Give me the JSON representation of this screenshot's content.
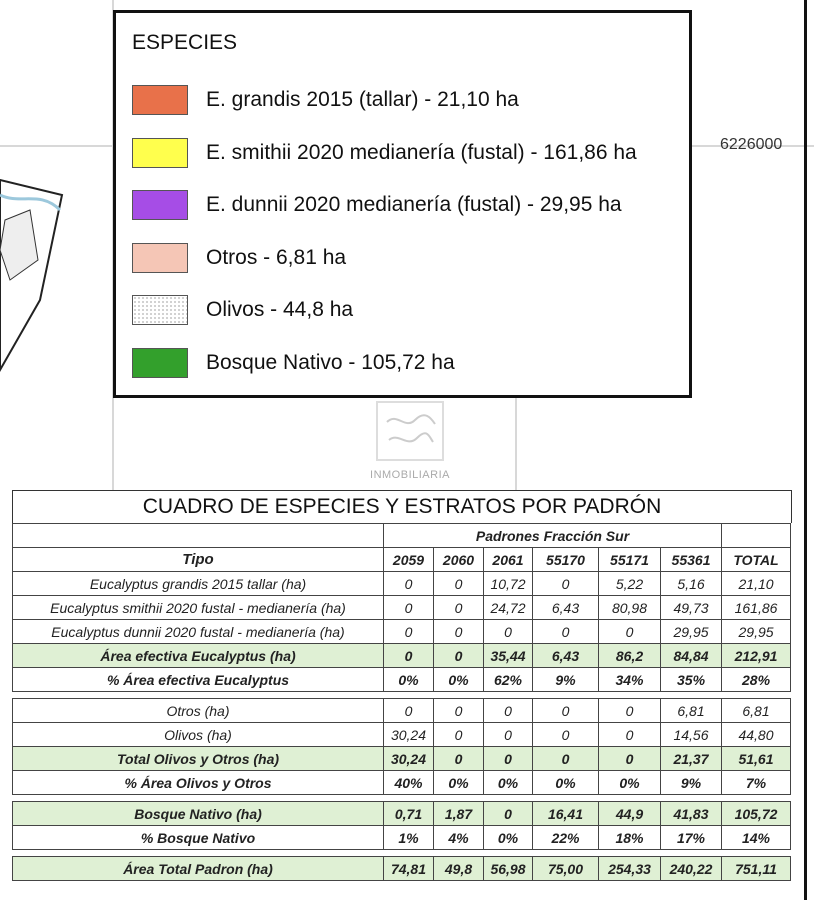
{
  "legend": {
    "title": "ESPECIES",
    "items": [
      {
        "label": "E. grandis 2015 (tallar) - 21,10 ha",
        "color": "#e8714a"
      },
      {
        "label": "E. smithii 2020 medianería (fustal) - 161,86 ha",
        "color": "#ffff4d"
      },
      {
        "label": "E. dunnii 2020 medianería (fustal) - 29,95 ha",
        "color": "#a64de6"
      },
      {
        "label": "Otros - 6,81 ha",
        "color": "#f5c6b6"
      },
      {
        "label": "Olivos - 44,8 ha",
        "color": "dotted"
      },
      {
        "label": "Bosque Nativo - 105,72 ha",
        "color": "#33a02c"
      }
    ]
  },
  "map": {
    "coordinate_label": "6226000",
    "watermark": "INMOBILIARIA"
  },
  "table": {
    "title": "CUADRO DE ESPECIES Y ESTRATOS POR PADRÓN",
    "group_header": "Padrones Fracción Sur",
    "columns": [
      "Tipo",
      "2059",
      "2060",
      "2061",
      "55170",
      "55171",
      "55361",
      "TOTAL"
    ],
    "highlight_color": "#dff0d4",
    "groups": [
      [
        {
          "style": "",
          "cells": [
            "Eucalyptus grandis 2015 tallar (ha)",
            "0",
            "0",
            "10,72",
            "0",
            "5,22",
            "5,16",
            "21,10"
          ]
        },
        {
          "style": "",
          "cells": [
            "Eucalyptus smithii 2020 fustal - medianería (ha)",
            "0",
            "0",
            "24,72",
            "6,43",
            "80,98",
            "49,73",
            "161,86"
          ]
        },
        {
          "style": "",
          "cells": [
            "Eucalyptus  dunnii 2020 fustal - medianería (ha)",
            "0",
            "0",
            "0",
            "0",
            "0",
            "29,95",
            "29,95"
          ]
        },
        {
          "style": "g b",
          "cells": [
            "Área efectiva Eucalyptus (ha)",
            "0",
            "0",
            "35,44",
            "6,43",
            "86,2",
            "84,84",
            "212,91"
          ]
        },
        {
          "style": "b",
          "cells": [
            "% Área efectiva Eucalyptus",
            "0%",
            "0%",
            "62%",
            "9%",
            "34%",
            "35%",
            "28%"
          ]
        }
      ],
      [
        {
          "style": "",
          "cells": [
            "Otros (ha)",
            "0",
            "0",
            "0",
            "0",
            "0",
            "6,81",
            "6,81"
          ]
        },
        {
          "style": "",
          "cells": [
            "Olivos (ha)",
            "30,24",
            "0",
            "0",
            "0",
            "0",
            "14,56",
            "44,80"
          ]
        },
        {
          "style": "g b",
          "cells": [
            "Total Olivos y Otros (ha)",
            "30,24",
            "0",
            "0",
            "0",
            "0",
            "21,37",
            "51,61"
          ]
        },
        {
          "style": "b",
          "cells": [
            "% Área Olivos y Otros",
            "40%",
            "0%",
            "0%",
            "0%",
            "0%",
            "9%",
            "7%"
          ]
        }
      ],
      [
        {
          "style": "g b",
          "cells": [
            "Bosque Nativo (ha)",
            "0,71",
            "1,87",
            "0",
            "16,41",
            "44,9",
            "41,83",
            "105,72"
          ]
        },
        {
          "style": "b",
          "cells": [
            "% Bosque Nativo",
            "1%",
            "4%",
            "0%",
            "22%",
            "18%",
            "17%",
            "14%"
          ]
        }
      ],
      [
        {
          "style": "g b",
          "cells": [
            "Área Total Padron (ha)",
            "74,81",
            "49,8",
            "56,98",
            "75,00",
            "254,33",
            "240,22",
            "751,11"
          ]
        }
      ]
    ]
  }
}
